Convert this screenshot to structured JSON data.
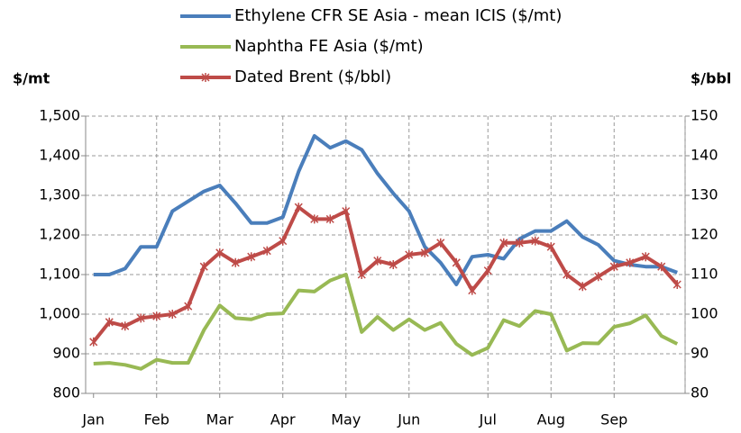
{
  "chart_data": {
    "type": "line",
    "y_label": "$/mt",
    "y2_label": "$/bbl",
    "categories": [
      "Jan",
      null,
      null,
      null,
      "Feb",
      null,
      null,
      null,
      "Mar",
      null,
      null,
      null,
      "Apr",
      null,
      null,
      null,
      "May",
      null,
      null,
      null,
      "Jun",
      null,
      null,
      null,
      null,
      "Jul",
      null,
      null,
      null,
      "Aug",
      null,
      null,
      null,
      "Sep",
      null,
      null,
      null,
      null
    ],
    "series": [
      {
        "name": "Ethylene CFR SE Asia - mean ICIS ($/mt)",
        "color": "#4a7ebb",
        "axis": "y",
        "values": [
          1100,
          1100,
          1115,
          1170,
          1170,
          1260,
          1285,
          1310,
          1325,
          1280,
          1230,
          1230,
          1245,
          1360,
          1450,
          1420,
          1437,
          1415,
          1355,
          1305,
          1260,
          1170,
          1130,
          1075,
          1145,
          1150,
          1140,
          1190,
          1210,
          1210,
          1235,
          1195,
          1175,
          1135,
          1125,
          1120,
          1120,
          1105
        ]
      },
      {
        "name": "Naphtha FE Asia ($/mt)",
        "color": "#98b954",
        "axis": "y",
        "values": [
          875,
          877,
          872,
          862,
          885,
          877,
          877,
          960,
          1022,
          990,
          987,
          1000,
          1002,
          1060,
          1057,
          1085,
          1100,
          955,
          993,
          960,
          987,
          960,
          978,
          925,
          897,
          915,
          985,
          970,
          1008,
          1000,
          908,
          927,
          926,
          968,
          977,
          997,
          945,
          925
        ]
      },
      {
        "name": "Dated Brent ($/bbl)",
        "color": "#be4b48",
        "axis": "y2",
        "marker": "asterisk",
        "values": [
          93,
          98,
          97,
          99,
          99.5,
          100,
          102,
          112,
          115.5,
          113,
          114.5,
          116,
          118.5,
          127,
          124,
          124,
          126,
          110,
          113.5,
          112.5,
          115,
          115.5,
          118,
          113,
          106,
          111,
          118,
          118,
          118.5,
          117,
          110,
          107,
          109.5,
          112,
          113,
          114.5,
          112,
          107.5
        ]
      }
    ],
    "ylim": [
      800,
      1500
    ],
    "yticks": [
      {
        "value": 800,
        "label": "800"
      },
      {
        "value": 900,
        "label": "900"
      },
      {
        "value": 1000,
        "label": "1,000"
      },
      {
        "value": 1100,
        "label": "1,100"
      },
      {
        "value": 1200,
        "label": "1,200"
      },
      {
        "value": 1300,
        "label": "1,300"
      },
      {
        "value": 1400,
        "label": "1,400"
      },
      {
        "value": 1500,
        "label": "1,500"
      }
    ],
    "y2lim": [
      80,
      150
    ],
    "y2ticks": [
      80,
      90,
      100,
      110,
      120,
      130,
      140,
      150
    ],
    "grid": true
  }
}
